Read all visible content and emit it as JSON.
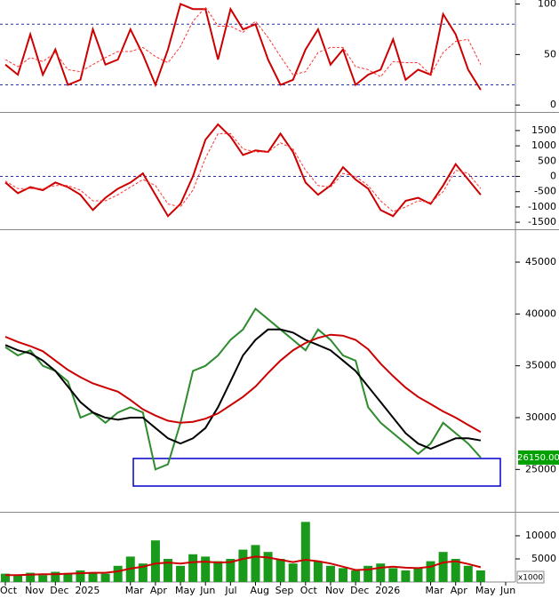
{
  "chart_data": [
    {
      "type": "line",
      "ylim": [
        -6,
        104
      ],
      "yticks": [
        0,
        50,
        100
      ],
      "ref_lines": [
        80,
        20
      ],
      "series": [
        {
          "color": "#cc0000",
          "values": [
            40,
            30,
            70,
            30,
            55,
            20,
            25,
            75,
            40,
            45,
            75,
            50,
            20,
            55,
            100,
            95,
            95,
            45,
            95,
            75,
            80,
            45,
            20,
            25,
            55,
            75,
            40,
            55,
            20,
            30,
            35,
            65,
            25,
            35,
            30,
            90,
            70,
            35,
            15,
            null,
            null
          ]
        },
        {
          "color": "#ff3333",
          "dashed": true,
          "values": [
            45,
            38,
            47,
            43,
            52,
            35,
            33,
            40,
            47,
            53,
            53,
            57,
            48,
            42,
            58,
            83,
            97,
            78,
            78,
            72,
            83,
            67,
            48,
            30,
            33,
            52,
            57,
            57,
            38,
            35,
            28,
            43,
            42,
            42,
            30,
            52,
            63,
            65,
            40,
            null,
            null
          ]
        }
      ]
    },
    {
      "type": "line",
      "ylim": [
        -1700,
        2050
      ],
      "yticks": [
        1500,
        1000,
        500,
        0,
        -500,
        -1000,
        -1500
      ],
      "ref_lines": [
        0
      ],
      "series": [
        {
          "color": "#cc0000",
          "values": [
            -200,
            -550,
            -350,
            -450,
            -200,
            -350,
            -600,
            -1100,
            -700,
            -400,
            -200,
            100,
            -600,
            -1300,
            -900,
            0,
            1200,
            1700,
            1300,
            700,
            850,
            800,
            1400,
            800,
            -200,
            -600,
            -300,
            300,
            -100,
            -400,
            -1100,
            -1300,
            -800,
            -700,
            -900,
            -300,
            400,
            -100,
            -600,
            null,
            null
          ]
        },
        {
          "color": "#ff3333",
          "dashed": true,
          "values": [
            -150,
            -400,
            -400,
            -400,
            -300,
            -300,
            -450,
            -800,
            -800,
            -600,
            -350,
            -100,
            -300,
            -900,
            -1000,
            -450,
            600,
            1400,
            1400,
            900,
            800,
            800,
            1100,
            900,
            200,
            -300,
            -350,
            100,
            0,
            -300,
            -800,
            -1150,
            -1000,
            -800,
            -850,
            -500,
            200,
            100,
            -400,
            null,
            null
          ]
        }
      ]
    },
    {
      "type": "line",
      "ylim": [
        21000,
        48000
      ],
      "yticks": [
        25000,
        30000,
        35000,
        40000,
        45000
      ],
      "last_label": "26150.00",
      "series": [
        {
          "color": "#2e8b2e",
          "values": [
            36800,
            36000,
            36500,
            35000,
            34500,
            33500,
            30000,
            30500,
            29500,
            30500,
            31000,
            30500,
            25000,
            25500,
            29500,
            34500,
            35000,
            36000,
            37500,
            38500,
            40500,
            39500,
            38500,
            37500,
            36500,
            38500,
            37500,
            36000,
            35500,
            31000,
            29500,
            28500,
            27500,
            26500,
            27500,
            29500,
            28500,
            27500,
            26150,
            null,
            null
          ]
        },
        {
          "color": "#000000",
          "values": [
            37000,
            36500,
            36200,
            35500,
            34500,
            33000,
            31500,
            30500,
            30000,
            29800,
            30000,
            30000,
            29000,
            28000,
            27500,
            28000,
            29000,
            31000,
            33500,
            36000,
            37500,
            38500,
            38500,
            38200,
            37500,
            37000,
            36500,
            35500,
            34500,
            33000,
            31500,
            30000,
            28500,
            27500,
            27000,
            27500,
            28000,
            28000,
            27800,
            null,
            null
          ]
        },
        {
          "color": "#cc0000",
          "values": [
            37800,
            37300,
            36900,
            36400,
            35500,
            34600,
            33900,
            33300,
            32900,
            32500,
            31700,
            30800,
            30200,
            29700,
            29500,
            29600,
            29900,
            30400,
            31200,
            32000,
            33000,
            34300,
            35500,
            36500,
            37200,
            37700,
            38000,
            37900,
            37500,
            36600,
            35200,
            34000,
            32900,
            32000,
            31300,
            30600,
            30000,
            29300,
            28600,
            null,
            null
          ]
        }
      ]
    },
    {
      "type": "bar",
      "ylim": [
        0,
        14800
      ],
      "yticks": [
        5000,
        10000
      ],
      "unit_label": "x1000",
      "categories": [
        "Oct",
        null,
        "Nov",
        null,
        "Dec",
        null,
        "2025",
        null,
        null,
        null,
        "Mar",
        null,
        "Apr",
        null,
        "May",
        null,
        "Jun",
        null,
        "Jul",
        null,
        "Aug",
        null,
        "Sep",
        null,
        "Oct",
        null,
        "Nov",
        null,
        "Dec",
        null,
        "2026",
        null,
        null,
        null,
        "Mar",
        null,
        "Apr",
        null,
        "May",
        null,
        "Jun"
      ],
      "series": [
        {
          "color": "#1a9a1a",
          "values": [
            1800,
            1500,
            2000,
            1500,
            2200,
            1800,
            2500,
            2000,
            1800,
            3500,
            5500,
            4000,
            9000,
            5000,
            3500,
            6000,
            5500,
            4500,
            5000,
            7000,
            8000,
            6500,
            5000,
            4000,
            13000,
            4500,
            3500,
            3000,
            2500,
            3500,
            4000,
            3000,
            2500,
            3000,
            4500,
            6500,
            5000,
            3500,
            2500,
            null,
            null
          ]
        },
        {
          "color": "#cc0000",
          "type": "line",
          "values": [
            1500,
            1500,
            1600,
            1700,
            1700,
            1800,
            1900,
            2000,
            2000,
            2300,
            2900,
            3300,
            4000,
            4200,
            4000,
            4300,
            4400,
            4200,
            4300,
            5000,
            5500,
            5300,
            4800,
            4300,
            4800,
            4500,
            4000,
            3300,
            2600,
            2700,
            3100,
            3300,
            3100,
            3000,
            3300,
            4200,
            4500,
            3900,
            3200,
            null,
            null
          ]
        }
      ]
    }
  ]
}
